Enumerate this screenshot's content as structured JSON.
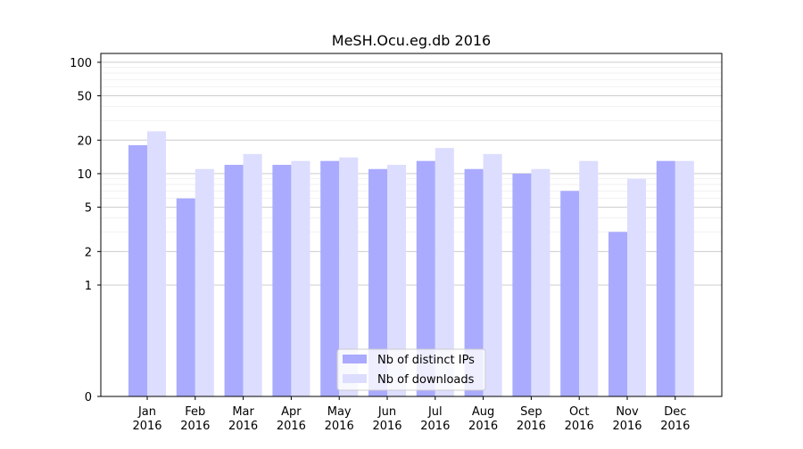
{
  "chart_data": {
    "type": "bar",
    "title": "MeSH.Ocu.eg.db 2016",
    "xlabel": "",
    "ylabel": "",
    "yscale": "symlog",
    "ylim": [
      0,
      120
    ],
    "yticks": [
      0,
      1,
      2,
      5,
      10,
      20,
      50,
      100
    ],
    "grid": true,
    "legend_position": "bottom-center",
    "categories": [
      "Jan\n2016",
      "Feb\n2016",
      "Mar\n2016",
      "Apr\n2016",
      "May\n2016",
      "Jun\n2016",
      "Jul\n2016",
      "Aug\n2016",
      "Sep\n2016",
      "Oct\n2016",
      "Nov\n2016",
      "Dec\n2016"
    ],
    "series": [
      {
        "name": "Nb of distinct IPs",
        "color": "#aaaaff",
        "values": [
          18,
          6,
          12,
          12,
          13,
          11,
          13,
          11,
          10,
          7,
          3,
          13
        ]
      },
      {
        "name": "Nb of downloads",
        "color": "#ddddff",
        "values": [
          24,
          11,
          15,
          13,
          14,
          12,
          17,
          15,
          11,
          13,
          9,
          13
        ]
      }
    ]
  }
}
